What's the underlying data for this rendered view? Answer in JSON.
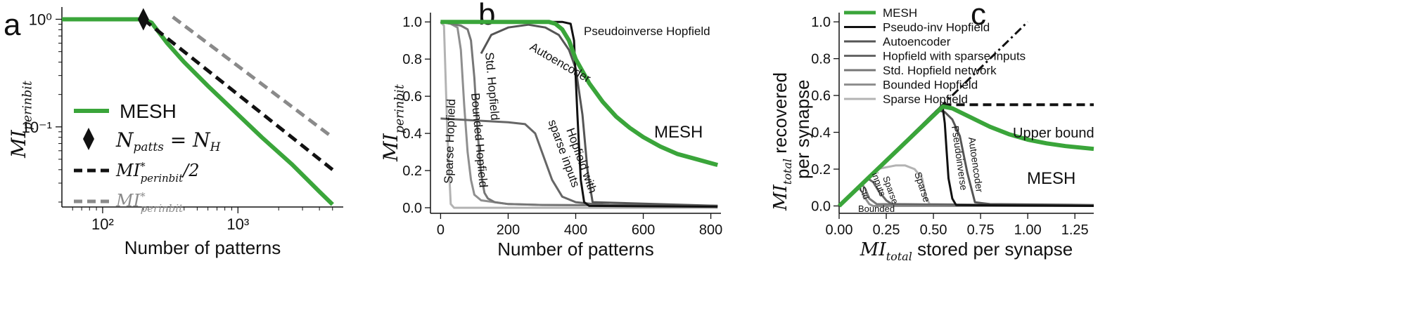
{
  "panel_labels": [
    "a",
    "b",
    "c"
  ],
  "colors": {
    "mesh": "#3aa53a",
    "black": "#111111",
    "autoencoder": "#555555",
    "sparse_inputs": "#666666",
    "std_hopfield": "#777777",
    "bounded": "#8f8f8f",
    "sparse": "#b3b3b3",
    "gray_dashed": "#8a8a8a"
  },
  "chart_data": [
    {
      "id": "a",
      "type": "line",
      "xscale": "log",
      "yscale": "log",
      "xlim": [
        50,
        6000
      ],
      "ylim": [
        0.018,
        1.3
      ],
      "xlabel": "Number of patterns",
      "ylabel": "MI_{per in bit}",
      "xticks": [
        {
          "v": 100,
          "label": "10²"
        },
        {
          "v": 1000,
          "label": "10³"
        }
      ],
      "yticks": [
        {
          "v": 1,
          "label": "10⁰"
        },
        {
          "v": 0.1,
          "label": "10⁻¹"
        }
      ],
      "legend": [
        {
          "key": "mesh",
          "label": "MESH"
        },
        {
          "key": "marker",
          "label": "N_patts = N_H"
        },
        {
          "key": "half",
          "label": "MI*_per in bit / 2"
        },
        {
          "key": "full",
          "label": "MI*_per in bit"
        }
      ],
      "series": [
        {
          "key": "mesh",
          "style": "solid",
          "color_key": "mesh",
          "x": [
            50,
            150,
            200,
            230,
            300,
            400,
            600,
            1000,
            1500,
            2500,
            4000,
            5000
          ],
          "y": [
            1.0,
            1.0,
            1.0,
            0.93,
            0.6,
            0.4,
            0.24,
            0.13,
            0.08,
            0.045,
            0.025,
            0.019
          ]
        },
        {
          "key": "half",
          "style": "dashed",
          "color_key": "black",
          "x": [
            200,
            5000
          ],
          "y": [
            1.0,
            0.04
          ]
        },
        {
          "key": "full",
          "style": "dashed",
          "color_key": "gray_dashed",
          "x": [
            330,
            5000
          ],
          "y": [
            1.05,
            0.08
          ]
        }
      ],
      "marker": {
        "x": 200,
        "y": 1.0
      }
    },
    {
      "id": "b",
      "type": "line",
      "xlim": [
        -30,
        830
      ],
      "ylim": [
        -0.03,
        1.05
      ],
      "xlabel": "Number of patterns",
      "ylabel": "MI_{per in bit}",
      "xticks": [
        0,
        200,
        400,
        600,
        800
      ],
      "yticks": [
        0.0,
        0.2,
        0.4,
        0.6,
        0.8,
        1.0
      ],
      "series": [
        {
          "key": "sparse",
          "label": "Sparse  Hopfield",
          "color_key": "sparse",
          "x": [
            0,
            10,
            20,
            30,
            40,
            820
          ],
          "y": [
            1.0,
            0.98,
            0.4,
            0.02,
            0.0,
            0.0
          ]
        },
        {
          "key": "bounded",
          "label": "Bounded Hopfield",
          "color_key": "bounded",
          "x": [
            0,
            30,
            50,
            60,
            70,
            80,
            90,
            100,
            120,
            200,
            300,
            820
          ],
          "y": [
            1.0,
            0.99,
            0.97,
            0.85,
            0.55,
            0.3,
            0.15,
            0.07,
            0.04,
            0.02,
            0.015,
            0.01
          ]
        },
        {
          "key": "std",
          "label": "Std. Hopfield",
          "color_key": "std_hopfield",
          "x": [
            0,
            60,
            80,
            90,
            100,
            110,
            120,
            130,
            140,
            160,
            200,
            300,
            820
          ],
          "y": [
            1.0,
            0.98,
            0.96,
            0.9,
            0.7,
            0.4,
            0.18,
            0.08,
            0.05,
            0.03,
            0.02,
            0.015,
            0.01
          ]
        },
        {
          "key": "sparse_inputs",
          "label": "Hopfield with sparse inputs",
          "color_key": "sparse_inputs",
          "x": [
            0,
            100,
            200,
            250,
            280,
            300,
            330,
            360,
            400,
            450,
            500,
            820
          ],
          "y": [
            0.48,
            0.47,
            0.46,
            0.45,
            0.4,
            0.3,
            0.15,
            0.06,
            0.03,
            0.02,
            0.015,
            0.01
          ]
        },
        {
          "key": "autoencoder",
          "label": "Autoencoder",
          "color_key": "autoencoder",
          "x": [
            120,
            150,
            200,
            260,
            310,
            350,
            380,
            400,
            420,
            435,
            450,
            820
          ],
          "y": [
            0.83,
            0.93,
            0.97,
            0.985,
            0.97,
            0.93,
            0.85,
            0.75,
            0.5,
            0.2,
            0.03,
            0.01
          ]
        },
        {
          "key": "pinv",
          "label": "Pseudoinverse Hopfield",
          "color_key": "black",
          "x": [
            0,
            360,
            385,
            395,
            405,
            415,
            425,
            440,
            820
          ],
          "y": [
            1.0,
            1.0,
            0.99,
            0.9,
            0.5,
            0.15,
            0.03,
            0.01,
            0.005
          ]
        },
        {
          "key": "mesh",
          "label": "MESH",
          "color_key": "mesh",
          "x": [
            0,
            300,
            320,
            340,
            360,
            380,
            400,
            440,
            480,
            520,
            560,
            600,
            650,
            700,
            760,
            820
          ],
          "y": [
            1.0,
            1.0,
            1.0,
            0.99,
            0.96,
            0.9,
            0.8,
            0.67,
            0.57,
            0.49,
            0.43,
            0.38,
            0.33,
            0.29,
            0.26,
            0.23
          ]
        }
      ]
    },
    {
      "id": "c",
      "type": "line",
      "xlim": [
        0,
        1.35
      ],
      "ylim": [
        -0.04,
        1.05
      ],
      "xlabel": "MI_total stored per synapse",
      "ylabel": "MI_total recovered per synapse",
      "xticks": [
        0.0,
        0.25,
        0.5,
        0.75,
        1.0,
        1.25
      ],
      "xticklabels": [
        "0.00",
        "0.25",
        "0.50",
        "0.75",
        "1.00",
        "1.25"
      ],
      "yticks": [
        0.0,
        0.2,
        0.4,
        0.6,
        0.8,
        1.0
      ],
      "legend": [
        {
          "key": "mesh",
          "label": "MESH",
          "color_key": "mesh"
        },
        {
          "key": "pinv",
          "label": "Pseudo-inv Hopfield",
          "color_key": "black"
        },
        {
          "key": "autoencoder",
          "label": "Autoencoder",
          "color_key": "autoencoder"
        },
        {
          "key": "sparse_inputs",
          "label": "Hopfield with sparse inputs",
          "color_key": "sparse_inputs"
        },
        {
          "key": "std",
          "label": "Std. Hopfield network",
          "color_key": "std_hopfield"
        },
        {
          "key": "bounded",
          "label": "Bounded Hopfield",
          "color_key": "bounded"
        },
        {
          "key": "sparse",
          "label": "Sparse Hopfield",
          "color_key": "sparse"
        }
      ],
      "annotations": {
        "upper_bound": "Upper bound",
        "mesh": "MESH",
        "pinv": "Pseudoinverse",
        "autoencoder": "Autoencoder",
        "sparse": "Sparse",
        "sparse_inputs": "Sparse inputs",
        "std": "Std",
        "bounded": "Bounded"
      },
      "identity_line": {
        "x": [
          0,
          1.0
        ],
        "y": [
          0,
          1.0
        ]
      },
      "upper_bound_line": {
        "x": [
          0.55,
          1.35
        ],
        "y": [
          0.55,
          0.55
        ]
      },
      "series": [
        {
          "key": "sparse",
          "color_key": "sparse",
          "x": [
            0.0,
            0.1,
            0.2,
            0.3,
            0.35,
            0.4,
            0.44,
            0.46,
            0.48,
            1.35
          ],
          "y": [
            0.0,
            0.1,
            0.2,
            0.22,
            0.22,
            0.2,
            0.15,
            0.05,
            0.01,
            0.0
          ]
        },
        {
          "key": "bounded",
          "color_key": "bounded",
          "x": [
            0.0,
            0.08,
            0.1,
            0.12,
            0.14,
            0.16,
            0.18,
            1.35
          ],
          "y": [
            0.0,
            0.08,
            0.1,
            0.08,
            0.04,
            0.01,
            0.0,
            0.0
          ]
        },
        {
          "key": "std",
          "color_key": "std_hopfield",
          "x": [
            0.0,
            0.1,
            0.12,
            0.14,
            0.16,
            0.2,
            1.35
          ],
          "y": [
            0.0,
            0.1,
            0.12,
            0.09,
            0.04,
            0.01,
            0.0
          ]
        },
        {
          "key": "sparse_inputs",
          "color_key": "sparse_inputs",
          "x": [
            0.0,
            0.12,
            0.15,
            0.18,
            0.21,
            0.25,
            0.28,
            1.35
          ],
          "y": [
            0.0,
            0.12,
            0.15,
            0.13,
            0.08,
            0.03,
            0.01,
            0.0
          ]
        },
        {
          "key": "autoencoder",
          "color_key": "autoencoder",
          "x": [
            0.0,
            0.52,
            0.56,
            0.6,
            0.64,
            0.68,
            0.72,
            0.8,
            1.35
          ],
          "y": [
            0.0,
            0.52,
            0.51,
            0.47,
            0.38,
            0.18,
            0.02,
            0.01,
            0.005
          ]
        },
        {
          "key": "pinv",
          "color_key": "black",
          "x": [
            0.0,
            0.54,
            0.55,
            0.56,
            0.57,
            0.58,
            0.6,
            0.62,
            1.35
          ],
          "y": [
            0.0,
            0.54,
            0.53,
            0.45,
            0.3,
            0.15,
            0.04,
            0.005,
            0.0
          ]
        },
        {
          "key": "mesh",
          "color_key": "mesh",
          "x": [
            0.0,
            0.55,
            0.6,
            0.7,
            0.8,
            0.9,
            1.0,
            1.1,
            1.2,
            1.35
          ],
          "y": [
            0.0,
            0.54,
            0.53,
            0.48,
            0.43,
            0.39,
            0.36,
            0.34,
            0.325,
            0.31
          ]
        }
      ]
    }
  ]
}
